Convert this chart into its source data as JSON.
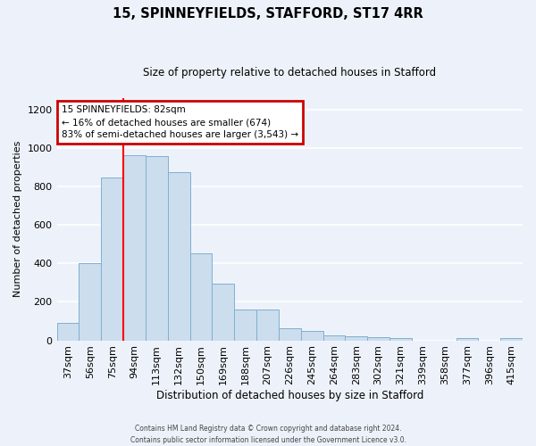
{
  "title1": "15, SPINNEYFIELDS, STAFFORD, ST17 4RR",
  "title2": "Size of property relative to detached houses in Stafford",
  "xlabel": "Distribution of detached houses by size in Stafford",
  "ylabel": "Number of detached properties",
  "categories": [
    "37sqm",
    "56sqm",
    "75sqm",
    "94sqm",
    "113sqm",
    "132sqm",
    "150sqm",
    "169sqm",
    "188sqm",
    "207sqm",
    "226sqm",
    "245sqm",
    "264sqm",
    "283sqm",
    "302sqm",
    "321sqm",
    "339sqm",
    "358sqm",
    "377sqm",
    "396sqm",
    "415sqm"
  ],
  "values": [
    90,
    400,
    845,
    965,
    960,
    875,
    455,
    295,
    160,
    160,
    65,
    50,
    28,
    20,
    15,
    10,
    0,
    0,
    10,
    0,
    10
  ],
  "bar_color": "#ccdded",
  "bar_edge_color": "#7fb0d0",
  "red_line_x": 2.5,
  "annotation_text": "15 SPINNEYFIELDS: 82sqm\n← 16% of detached houses are smaller (674)\n83% of semi-detached houses are larger (3,543) →",
  "annotation_box_color": "#ffffff",
  "annotation_border_color": "#cc0000",
  "footer": "Contains HM Land Registry data © Crown copyright and database right 2024.\nContains public sector information licensed under the Government Licence v3.0.",
  "ylim": [
    0,
    1260
  ],
  "background_color": "#edf2fa",
  "grid_color": "#ffffff",
  "yticks": [
    0,
    200,
    400,
    600,
    800,
    1000,
    1200
  ]
}
